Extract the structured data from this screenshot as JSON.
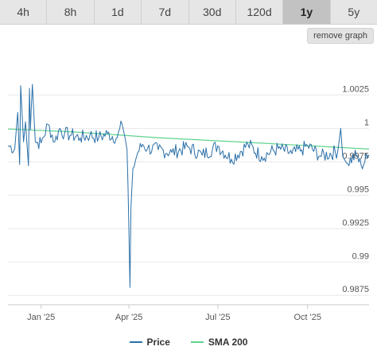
{
  "timeframes": [
    "4h",
    "8h",
    "1d",
    "7d",
    "30d",
    "120d",
    "1y",
    "5y"
  ],
  "active_timeframe": "1y",
  "remove_button_label": "remove graph",
  "legend": {
    "price": "Price",
    "sma": "SMA 200"
  },
  "colors": {
    "price": "#2a6fa8",
    "sma": "#5fd38d",
    "grid": "#e8e8e8",
    "axis": "#c8c8c8"
  },
  "chart_data": {
    "type": "line",
    "x_range": [
      "2024-11-28",
      "2025-12-03"
    ],
    "ylim": [
      0.9868,
      1.0058
    ],
    "y_ticks": [
      0.9875,
      0.99,
      0.9925,
      0.995,
      0.9975,
      1,
      1.0025
    ],
    "y_tick_labels": [
      "0.9875",
      "0.99",
      "0.9925",
      "0.995",
      "0.9975",
      "1",
      "1.0025"
    ],
    "x_ticks": [
      "2025-01-01",
      "2025-04-01",
      "2025-07-01",
      "2025-10-01"
    ],
    "x_tick_labels": [
      "Jan '25",
      "Apr '25",
      "Jul '25",
      "Oct '25"
    ],
    "grid": true,
    "legend_position": "bottom",
    "series": [
      {
        "name": "Price",
        "x": [
          "2024-11-28",
          "2024-12-05",
          "2024-12-08",
          "2024-12-10",
          "2024-12-11",
          "2024-12-14",
          "2024-12-16",
          "2024-12-19",
          "2024-12-20",
          "2024-12-21",
          "2024-12-23",
          "2024-12-26",
          "2025-01-01",
          "2025-01-08",
          "2025-01-15",
          "2025-01-20",
          "2025-01-25",
          "2025-02-01",
          "2025-02-10",
          "2025-02-20",
          "2025-03-01",
          "2025-03-10",
          "2025-03-20",
          "2025-03-25",
          "2025-03-28",
          "2025-03-30",
          "2025-03-31",
          "2025-04-02",
          "2025-04-03",
          "2025-04-05",
          "2025-04-10",
          "2025-04-15",
          "2025-04-20",
          "2025-05-01",
          "2025-05-15",
          "2025-06-01",
          "2025-06-15",
          "2025-07-01",
          "2025-07-15",
          "2025-08-01",
          "2025-08-15",
          "2025-09-01",
          "2025-09-15",
          "2025-09-25",
          "2025-10-01",
          "2025-10-15",
          "2025-11-01",
          "2025-11-04",
          "2025-11-06",
          "2025-11-10",
          "2025-11-20",
          "2025-11-25",
          "2025-12-01",
          "2025-12-03"
        ],
        "values": [
          0.9987,
          0.9985,
          1.0012,
          0.9973,
          1.0032,
          0.999,
          1.0005,
          0.9972,
          1.003,
          0.9999,
          1.0033,
          0.999,
          0.9989,
          1.0003,
          0.999,
          1.0,
          0.9996,
          0.9995,
          0.9993,
          0.9995,
          0.9993,
          0.9996,
          0.9993,
          1.0003,
          0.9993,
          0.9984,
          0.9958,
          0.9881,
          0.994,
          0.997,
          0.9982,
          0.9988,
          0.9985,
          0.9984,
          0.9982,
          0.9986,
          0.998,
          0.9987,
          0.9977,
          0.9988,
          0.9979,
          0.9985,
          0.9981,
          0.9984,
          0.9987,
          0.9979,
          0.9983,
          1.0,
          0.9979,
          0.9974,
          0.998,
          0.9972,
          0.9978,
          0.998
        ]
      },
      {
        "name": "SMA 200",
        "x": [
          "2024-11-28",
          "2025-02-01",
          "2025-05-01",
          "2025-08-01",
          "2025-10-15",
          "2025-12-03"
        ],
        "values": [
          0.99995,
          0.99975,
          0.9993,
          0.99895,
          0.99865,
          0.99845
        ]
      }
    ]
  }
}
